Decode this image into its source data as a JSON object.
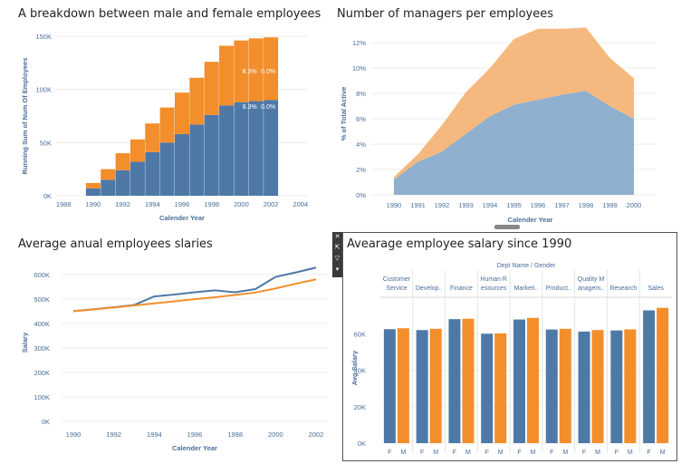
{
  "colors": {
    "male": "#4e79a7",
    "female": "#f28e2b",
    "female_area": "#f5b87e",
    "male_area": "#8fb0ce",
    "axis_text": "#4a6d9a"
  },
  "toolbar": {
    "icons": [
      "close-icon",
      "popout-icon",
      "filter-icon",
      "menu-icon"
    ],
    "glyphs": [
      "✕",
      "⇱",
      "▽",
      "▾"
    ]
  },
  "panels": {
    "p1": {
      "title": "A breakdown between male and female employees"
    },
    "p2": {
      "title": "Number of managers per employees"
    },
    "p3": {
      "title": "Average anual employees slaries"
    },
    "p4": {
      "title": "Avearage employee salary since 1990"
    }
  },
  "chart_data": [
    {
      "type": "bar",
      "title": "A breakdown between male and female employees",
      "xlabel": "Calender Year",
      "ylabel": "Running Sum of Num Of Employees",
      "x_ticks": [
        "1988",
        "1990",
        "1992",
        "1994",
        "1996",
        "1998",
        "2000",
        "2002",
        "2004"
      ],
      "y_ticks": [
        "0K",
        "50K",
        "100K",
        "150K"
      ],
      "xlim": [
        1987.5,
        2004.5
      ],
      "ylim": [
        0,
        150000
      ],
      "stacked": true,
      "categories": [
        1990,
        1991,
        1992,
        1993,
        1994,
        1995,
        1996,
        1997,
        1998,
        1999,
        2000,
        2001,
        2002
      ],
      "series": [
        {
          "name": "M",
          "values": [
            7000,
            15000,
            24000,
            32000,
            41000,
            50000,
            58000,
            67000,
            76000,
            85000,
            88000,
            89000,
            90000
          ]
        },
        {
          "name": "F",
          "values": [
            5000,
            10000,
            16000,
            21000,
            27000,
            33000,
            39000,
            44000,
            50000,
            56000,
            58000,
            59000,
            59000
          ]
        }
      ],
      "data_labels": {
        "male": [
          "8.3%",
          "0.0%"
        ],
        "female": [
          "8.3%",
          "0.0%"
        ]
      }
    },
    {
      "type": "area",
      "title": "Number of managers per employees",
      "xlabel": "Calender Year",
      "ylabel": "% of Total Active",
      "x": [
        "1990",
        "1991",
        "1992",
        "1993",
        "1994",
        "1995",
        "1996",
        "1997",
        "1998",
        "1999",
        "2000"
      ],
      "y_ticks": [
        "0%",
        "2%",
        "4%",
        "6%",
        "8%",
        "10%",
        "12%"
      ],
      "ylim": [
        0,
        12.8
      ],
      "stacked": true,
      "series": [
        {
          "name": "M",
          "values": [
            1.2,
            2.6,
            3.4,
            4.8,
            6.2,
            7.1,
            7.5,
            7.9,
            8.2,
            7.0,
            6.0
          ]
        },
        {
          "name": "F",
          "values": [
            0.2,
            0.6,
            2.1,
            3.3,
            3.8,
            5.2,
            5.6,
            5.2,
            5.0,
            3.8,
            3.2
          ]
        }
      ]
    },
    {
      "type": "line",
      "title": "Average anual employees slaries",
      "xlabel": "Calender Year",
      "ylabel": "Salary",
      "x_ticks": [
        "1990",
        "1992",
        "1994",
        "1996",
        "1998",
        "2000",
        "2002"
      ],
      "y_ticks": [
        "0K",
        "100K",
        "200K",
        "300K",
        "400K",
        "500K",
        "600K"
      ],
      "xlim": [
        1990,
        2002
      ],
      "ylim": [
        0,
        640000
      ],
      "x": [
        1990,
        1991,
        1992,
        1993,
        1994,
        1995,
        1996,
        1997,
        1998,
        1999,
        2000,
        2001,
        2002
      ],
      "series": [
        {
          "name": "M",
          "values": [
            450000,
            458000,
            466000,
            475000,
            510000,
            518000,
            527000,
            535000,
            527000,
            540000,
            590000,
            608000,
            628000
          ]
        },
        {
          "name": "F",
          "values": [
            450000,
            457000,
            465000,
            473000,
            482000,
            490000,
            499000,
            507000,
            516000,
            526000,
            543000,
            562000,
            580000
          ]
        }
      ]
    },
    {
      "type": "bar",
      "title": "Avearage employee salary since 1990",
      "header": "Dept Name  /  Gender",
      "ylabel": "Avg Salary",
      "y_ticks": [
        "0K",
        "20K",
        "40K",
        "60K"
      ],
      "ylim": [
        0,
        80000
      ],
      "groups": [
        {
          "label": [
            "Customer",
            "Service"
          ],
          "F": 62500,
          "M": 63000
        },
        {
          "label": [
            "Develop.."
          ],
          "F": 62000,
          "M": 62700
        },
        {
          "label": [
            "Finance"
          ],
          "F": 68000,
          "M": 68200
        },
        {
          "label": [
            "Human R",
            "esources"
          ],
          "F": 60000,
          "M": 60200
        },
        {
          "label": [
            "Marketi.."
          ],
          "F": 67800,
          "M": 68700
        },
        {
          "label": [
            "Product.."
          ],
          "F": 62300,
          "M": 62700
        },
        {
          "label": [
            "Quality M",
            "anagem.."
          ],
          "F": 61200,
          "M": 62000
        },
        {
          "label": [
            "Research"
          ],
          "F": 61800,
          "M": 62400
        },
        {
          "label": [
            "Sales"
          ],
          "F": 72800,
          "M": 74200
        }
      ],
      "gender_labels": [
        "F",
        "M"
      ]
    }
  ]
}
